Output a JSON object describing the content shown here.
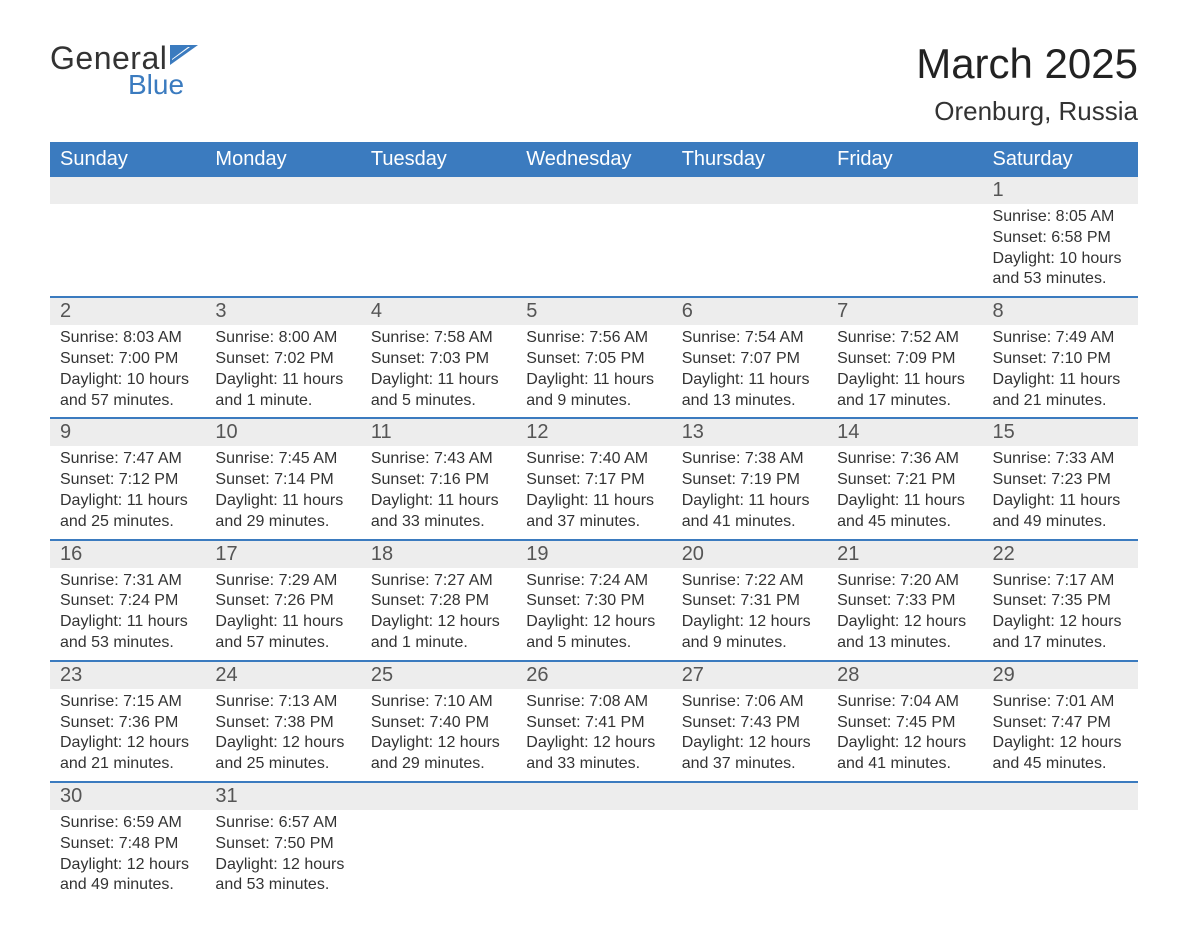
{
  "logo": {
    "text1": "General",
    "text2": "Blue",
    "flag_color": "#3b7bbf"
  },
  "title": {
    "month": "March 2025",
    "location": "Orenburg, Russia"
  },
  "colors": {
    "header_bg": "#3b7bbf",
    "header_text": "#ffffff",
    "daynum_bg": "#ededed",
    "row_divider": "#3b7bbf",
    "text": "#333333"
  },
  "typography": {
    "title_fontsize": 42,
    "location_fontsize": 26,
    "header_fontsize": 20,
    "daynum_fontsize": 20,
    "body_fontsize": 16
  },
  "columns": [
    "Sunday",
    "Monday",
    "Tuesday",
    "Wednesday",
    "Thursday",
    "Friday",
    "Saturday"
  ],
  "weeks": [
    [
      {
        "blank": true
      },
      {
        "blank": true
      },
      {
        "blank": true
      },
      {
        "blank": true
      },
      {
        "blank": true
      },
      {
        "blank": true
      },
      {
        "n": "1",
        "sunrise": "Sunrise: 8:05 AM",
        "sunset": "Sunset: 6:58 PM",
        "dl1": "Daylight: 10 hours",
        "dl2": "and 53 minutes."
      }
    ],
    [
      {
        "n": "2",
        "sunrise": "Sunrise: 8:03 AM",
        "sunset": "Sunset: 7:00 PM",
        "dl1": "Daylight: 10 hours",
        "dl2": "and 57 minutes."
      },
      {
        "n": "3",
        "sunrise": "Sunrise: 8:00 AM",
        "sunset": "Sunset: 7:02 PM",
        "dl1": "Daylight: 11 hours",
        "dl2": "and 1 minute."
      },
      {
        "n": "4",
        "sunrise": "Sunrise: 7:58 AM",
        "sunset": "Sunset: 7:03 PM",
        "dl1": "Daylight: 11 hours",
        "dl2": "and 5 minutes."
      },
      {
        "n": "5",
        "sunrise": "Sunrise: 7:56 AM",
        "sunset": "Sunset: 7:05 PM",
        "dl1": "Daylight: 11 hours",
        "dl2": "and 9 minutes."
      },
      {
        "n": "6",
        "sunrise": "Sunrise: 7:54 AM",
        "sunset": "Sunset: 7:07 PM",
        "dl1": "Daylight: 11 hours",
        "dl2": "and 13 minutes."
      },
      {
        "n": "7",
        "sunrise": "Sunrise: 7:52 AM",
        "sunset": "Sunset: 7:09 PM",
        "dl1": "Daylight: 11 hours",
        "dl2": "and 17 minutes."
      },
      {
        "n": "8",
        "sunrise": "Sunrise: 7:49 AM",
        "sunset": "Sunset: 7:10 PM",
        "dl1": "Daylight: 11 hours",
        "dl2": "and 21 minutes."
      }
    ],
    [
      {
        "n": "9",
        "sunrise": "Sunrise: 7:47 AM",
        "sunset": "Sunset: 7:12 PM",
        "dl1": "Daylight: 11 hours",
        "dl2": "and 25 minutes."
      },
      {
        "n": "10",
        "sunrise": "Sunrise: 7:45 AM",
        "sunset": "Sunset: 7:14 PM",
        "dl1": "Daylight: 11 hours",
        "dl2": "and 29 minutes."
      },
      {
        "n": "11",
        "sunrise": "Sunrise: 7:43 AM",
        "sunset": "Sunset: 7:16 PM",
        "dl1": "Daylight: 11 hours",
        "dl2": "and 33 minutes."
      },
      {
        "n": "12",
        "sunrise": "Sunrise: 7:40 AM",
        "sunset": "Sunset: 7:17 PM",
        "dl1": "Daylight: 11 hours",
        "dl2": "and 37 minutes."
      },
      {
        "n": "13",
        "sunrise": "Sunrise: 7:38 AM",
        "sunset": "Sunset: 7:19 PM",
        "dl1": "Daylight: 11 hours",
        "dl2": "and 41 minutes."
      },
      {
        "n": "14",
        "sunrise": "Sunrise: 7:36 AM",
        "sunset": "Sunset: 7:21 PM",
        "dl1": "Daylight: 11 hours",
        "dl2": "and 45 minutes."
      },
      {
        "n": "15",
        "sunrise": "Sunrise: 7:33 AM",
        "sunset": "Sunset: 7:23 PM",
        "dl1": "Daylight: 11 hours",
        "dl2": "and 49 minutes."
      }
    ],
    [
      {
        "n": "16",
        "sunrise": "Sunrise: 7:31 AM",
        "sunset": "Sunset: 7:24 PM",
        "dl1": "Daylight: 11 hours",
        "dl2": "and 53 minutes."
      },
      {
        "n": "17",
        "sunrise": "Sunrise: 7:29 AM",
        "sunset": "Sunset: 7:26 PM",
        "dl1": "Daylight: 11 hours",
        "dl2": "and 57 minutes."
      },
      {
        "n": "18",
        "sunrise": "Sunrise: 7:27 AM",
        "sunset": "Sunset: 7:28 PM",
        "dl1": "Daylight: 12 hours",
        "dl2": "and 1 minute."
      },
      {
        "n": "19",
        "sunrise": "Sunrise: 7:24 AM",
        "sunset": "Sunset: 7:30 PM",
        "dl1": "Daylight: 12 hours",
        "dl2": "and 5 minutes."
      },
      {
        "n": "20",
        "sunrise": "Sunrise: 7:22 AM",
        "sunset": "Sunset: 7:31 PM",
        "dl1": "Daylight: 12 hours",
        "dl2": "and 9 minutes."
      },
      {
        "n": "21",
        "sunrise": "Sunrise: 7:20 AM",
        "sunset": "Sunset: 7:33 PM",
        "dl1": "Daylight: 12 hours",
        "dl2": "and 13 minutes."
      },
      {
        "n": "22",
        "sunrise": "Sunrise: 7:17 AM",
        "sunset": "Sunset: 7:35 PM",
        "dl1": "Daylight: 12 hours",
        "dl2": "and 17 minutes."
      }
    ],
    [
      {
        "n": "23",
        "sunrise": "Sunrise: 7:15 AM",
        "sunset": "Sunset: 7:36 PM",
        "dl1": "Daylight: 12 hours",
        "dl2": "and 21 minutes."
      },
      {
        "n": "24",
        "sunrise": "Sunrise: 7:13 AM",
        "sunset": "Sunset: 7:38 PM",
        "dl1": "Daylight: 12 hours",
        "dl2": "and 25 minutes."
      },
      {
        "n": "25",
        "sunrise": "Sunrise: 7:10 AM",
        "sunset": "Sunset: 7:40 PM",
        "dl1": "Daylight: 12 hours",
        "dl2": "and 29 minutes."
      },
      {
        "n": "26",
        "sunrise": "Sunrise: 7:08 AM",
        "sunset": "Sunset: 7:41 PM",
        "dl1": "Daylight: 12 hours",
        "dl2": "and 33 minutes."
      },
      {
        "n": "27",
        "sunrise": "Sunrise: 7:06 AM",
        "sunset": "Sunset: 7:43 PM",
        "dl1": "Daylight: 12 hours",
        "dl2": "and 37 minutes."
      },
      {
        "n": "28",
        "sunrise": "Sunrise: 7:04 AM",
        "sunset": "Sunset: 7:45 PM",
        "dl1": "Daylight: 12 hours",
        "dl2": "and 41 minutes."
      },
      {
        "n": "29",
        "sunrise": "Sunrise: 7:01 AM",
        "sunset": "Sunset: 7:47 PM",
        "dl1": "Daylight: 12 hours",
        "dl2": "and 45 minutes."
      }
    ],
    [
      {
        "n": "30",
        "sunrise": "Sunrise: 6:59 AM",
        "sunset": "Sunset: 7:48 PM",
        "dl1": "Daylight: 12 hours",
        "dl2": "and 49 minutes."
      },
      {
        "n": "31",
        "sunrise": "Sunrise: 6:57 AM",
        "sunset": "Sunset: 7:50 PM",
        "dl1": "Daylight: 12 hours",
        "dl2": "and 53 minutes."
      },
      {
        "blank": true
      },
      {
        "blank": true
      },
      {
        "blank": true
      },
      {
        "blank": true
      },
      {
        "blank": true
      }
    ]
  ]
}
